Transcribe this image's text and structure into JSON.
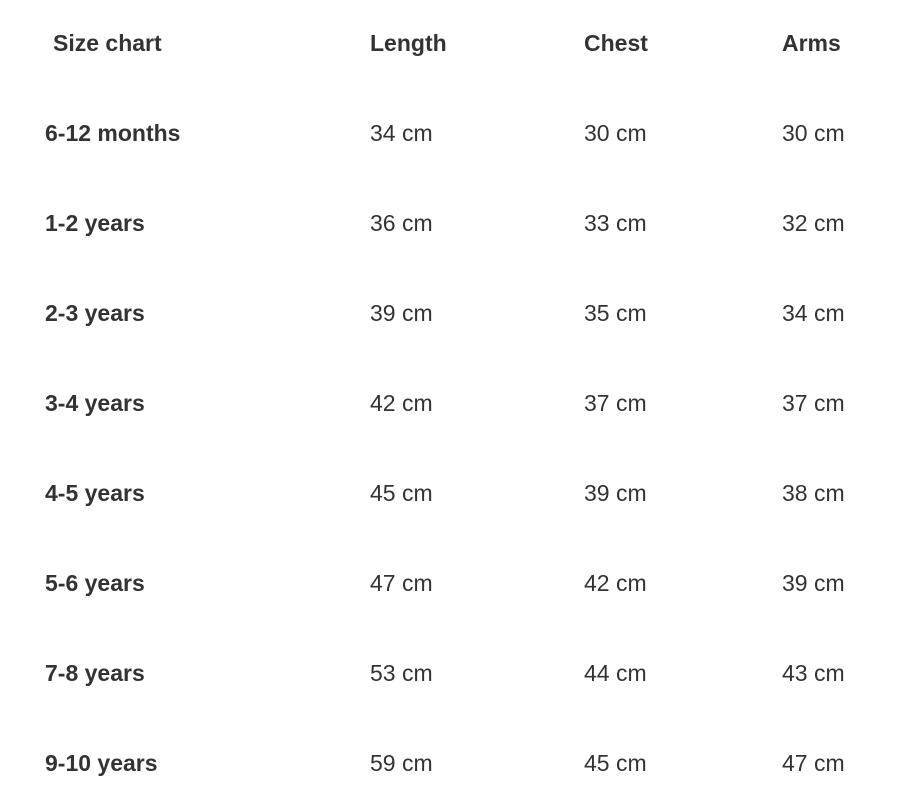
{
  "table": {
    "headers": [
      "Size chart",
      "Length",
      "Chest",
      "Arms"
    ],
    "rows": [
      [
        "6-12 months",
        "34 cm",
        "30 cm",
        "30 cm"
      ],
      [
        "1-2 years",
        "36 cm",
        "33 cm",
        "32 cm"
      ],
      [
        "2-3 years",
        "39 cm",
        "35 cm",
        "34 cm"
      ],
      [
        "3-4 years",
        "42 cm",
        "37 cm",
        "37 cm"
      ],
      [
        "4-5 years",
        "45 cm",
        "39 cm",
        "38 cm"
      ],
      [
        "5-6 years",
        "47 cm",
        "42 cm",
        "39 cm"
      ],
      [
        "7-8 years",
        "53 cm",
        "44 cm",
        "43 cm"
      ],
      [
        "9-10 years",
        "59 cm",
        "45 cm",
        "47 cm"
      ]
    ]
  }
}
